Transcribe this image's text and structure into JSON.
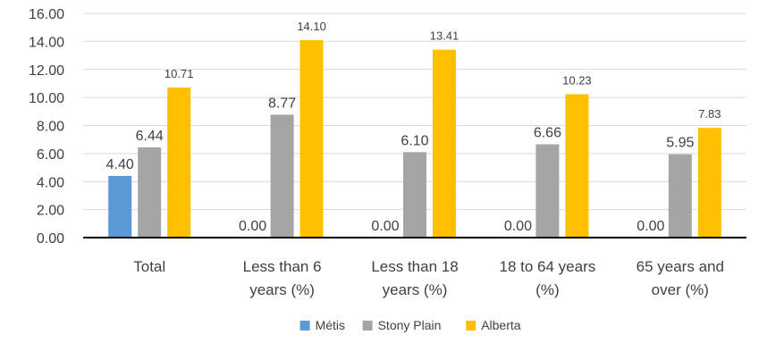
{
  "chart_data": {
    "type": "bar",
    "title": "",
    "xlabel": "",
    "ylabel": "",
    "ylim": [
      0,
      16
    ],
    "yticks": [
      "0.00",
      "2.00",
      "4.00",
      "6.00",
      "8.00",
      "10.00",
      "12.00",
      "14.00",
      "16.00"
    ],
    "grid": true,
    "legend_position": "bottom",
    "categories": [
      [
        "Total"
      ],
      [
        "Less than 6",
        "years (%)"
      ],
      [
        "Less than 18",
        "years (%)"
      ],
      [
        "18 to 64 years",
        "(%)"
      ],
      [
        "65 years and",
        "over (%)"
      ]
    ],
    "series": [
      {
        "name": "Métis",
        "color": "#5B9BD5",
        "values": [
          4.4,
          0.0,
          0.0,
          0.0,
          0.0
        ],
        "labels": [
          "4.40",
          "0.00",
          "0.00",
          "0.00",
          "0.00"
        ]
      },
      {
        "name": "Stony Plain",
        "color": "#A5A5A5",
        "values": [
          6.44,
          8.77,
          6.1,
          6.66,
          5.95
        ],
        "labels": [
          "6.44",
          "8.77",
          "6.10",
          "6.66",
          "5.95"
        ]
      },
      {
        "name": "Alberta",
        "color": "#FFC000",
        "values": [
          10.71,
          14.1,
          13.41,
          10.23,
          7.83
        ],
        "labels": [
          "10.71",
          "14.10",
          "13.41",
          "10.23",
          "7.83"
        ]
      }
    ]
  }
}
